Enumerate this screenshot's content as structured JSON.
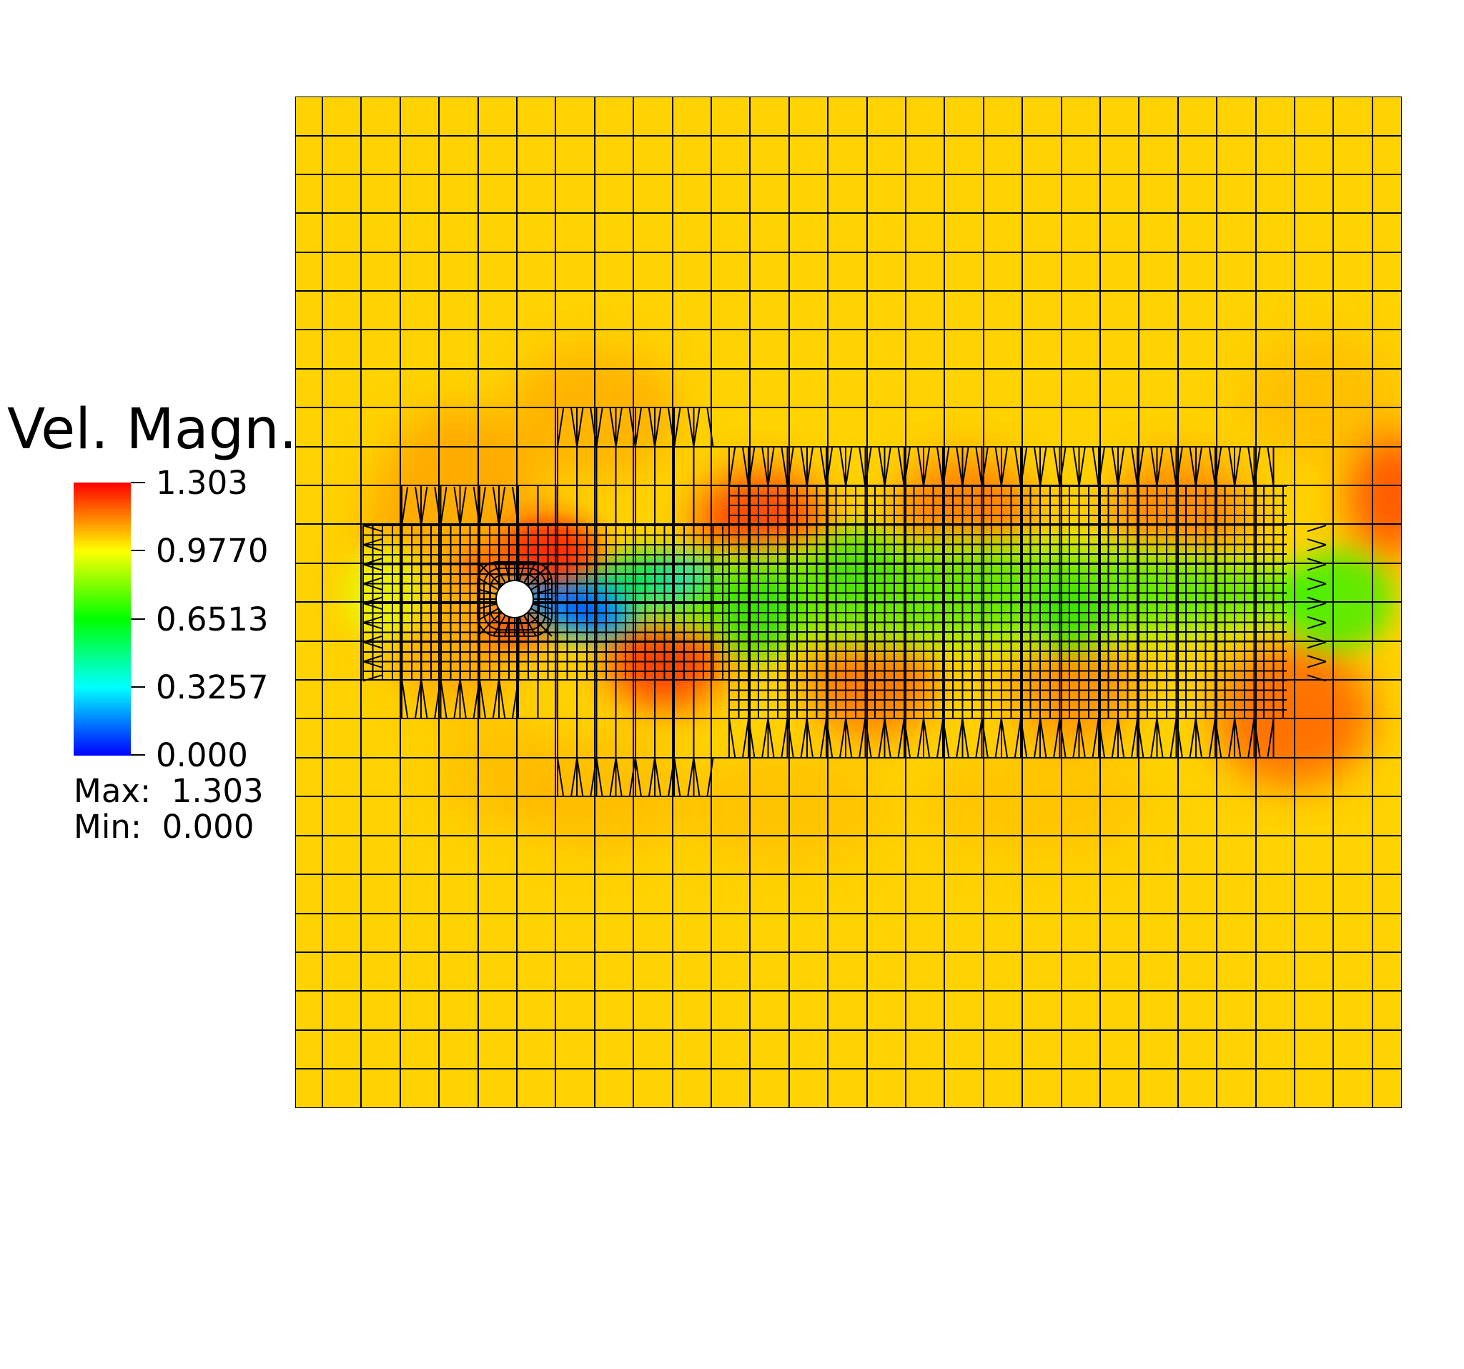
{
  "legend": {
    "title": "Vel. Magn.",
    "ticks": [
      "1.303",
      "0.9770",
      "0.6513",
      "0.3257",
      "0.000"
    ],
    "max_label": "Max:  1.303",
    "min_label": "Min:  0.000",
    "range": [
      0.0,
      1.303
    ],
    "colormap": [
      "#0000ff",
      "#00ffff",
      "#00ff00",
      "#ffff00",
      "#ff0000"
    ]
  },
  "field": {
    "background_color": "#ffd400",
    "mesh_line_color": "#000000",
    "obstacle_color": "#ffffff"
  }
}
